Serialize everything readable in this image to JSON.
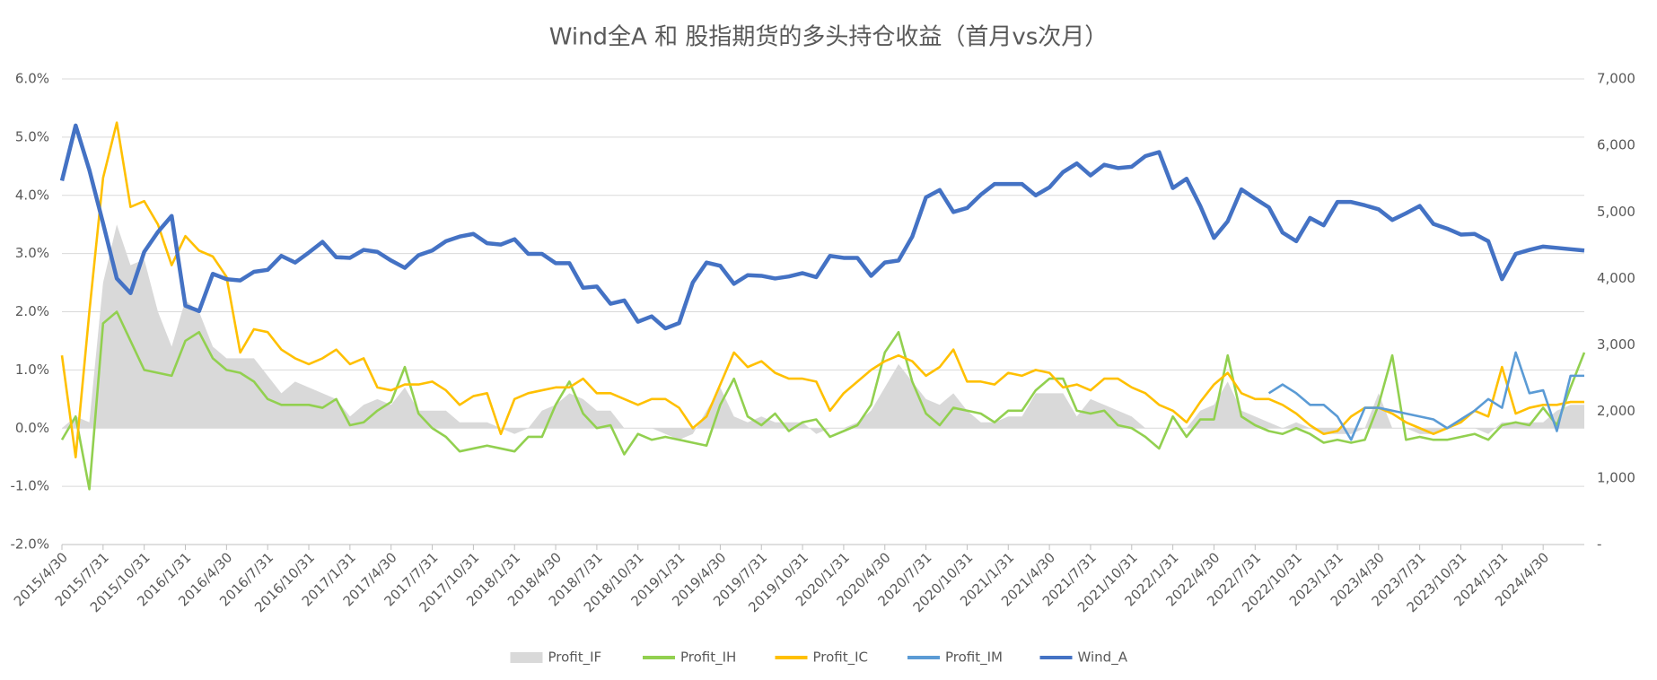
{
  "chart_data": {
    "type": "line",
    "title": "Wind全A 和 股指期货的多头持仓收益（首月vs次月）",
    "categories": [
      "2015/4/30",
      null,
      null,
      "2015/7/31",
      null,
      null,
      "2015/10/31",
      null,
      null,
      "2016/1/31",
      null,
      null,
      "2016/4/30",
      null,
      null,
      "2016/7/31",
      null,
      null,
      "2016/10/31",
      null,
      null,
      "2017/1/31",
      null,
      null,
      "2017/4/30",
      null,
      null,
      "2017/7/31",
      null,
      null,
      "2017/10/31",
      null,
      null,
      "2018/1/31",
      null,
      null,
      "2018/4/30",
      null,
      null,
      "2018/7/31",
      null,
      null,
      "2018/10/31",
      null,
      null,
      "2019/1/31",
      null,
      null,
      "2019/4/30",
      null,
      null,
      "2019/7/31",
      null,
      null,
      "2019/10/31",
      null,
      null,
      "2020/1/31",
      null,
      null,
      "2020/4/30",
      null,
      null,
      "2020/7/31",
      null,
      null,
      "2020/10/31",
      null,
      null,
      "2021/1/31",
      null,
      null,
      "2021/4/30",
      null,
      null,
      "2021/7/31",
      null,
      null,
      "2021/10/31",
      null,
      null,
      "2022/1/31",
      null,
      null,
      "2022/4/30",
      null,
      null,
      "2022/7/31",
      null,
      null,
      "2022/10/31",
      null,
      null,
      "2023/1/31",
      null,
      null,
      "2023/4/30",
      null,
      null,
      "2023/7/31",
      null,
      null,
      "2023/10/31",
      null,
      null,
      "2024/1/31",
      null,
      null,
      "2024/4/30",
      null,
      null,
      null
    ],
    "series": [
      {
        "name": "Profit_IF",
        "type": "area",
        "color": "#d9d9d9",
        "values": [
          0.0,
          0.2,
          0.1,
          2.5,
          3.5,
          2.8,
          2.9,
          2.0,
          1.4,
          2.2,
          2.0,
          1.4,
          1.2,
          1.2,
          1.2,
          0.9,
          0.6,
          0.8,
          0.7,
          0.6,
          0.5,
          0.2,
          0.4,
          0.5,
          0.4,
          0.7,
          0.3,
          0.3,
          0.3,
          0.1,
          0.1,
          0.1,
          0.0,
          -0.1,
          0.0,
          0.3,
          0.4,
          0.6,
          0.5,
          0.3,
          0.3,
          0.0,
          0.0,
          0.0,
          -0.1,
          -0.2,
          -0.1,
          0.3,
          0.7,
          0.2,
          0.1,
          0.2,
          0.1,
          0.1,
          0.1,
          -0.1,
          0.0,
          0.0,
          0.1,
          0.3,
          0.7,
          1.1,
          0.8,
          0.5,
          0.4,
          0.6,
          0.3,
          0.1,
          0.1,
          0.2,
          0.2,
          0.6,
          0.6,
          0.6,
          0.2,
          0.5,
          0.4,
          0.3,
          0.2,
          0.0,
          0.0,
          0.0,
          0.0,
          0.3,
          0.4,
          0.8,
          0.3,
          0.2,
          0.1,
          0.0,
          0.1,
          0.0,
          -0.1,
          -0.1,
          -0.1,
          0.0,
          0.6,
          0.0,
          0.0,
          -0.1,
          -0.1,
          0.0,
          0.0,
          0.0,
          -0.1,
          0.1,
          0.1,
          0.1,
          0.1,
          0.3,
          0.4,
          0.4
        ]
      },
      {
        "name": "Profit_IH",
        "color": "#92d050",
        "values": [
          -0.2,
          0.2,
          -1.05,
          1.8,
          2.0,
          1.5,
          1.0,
          0.95,
          0.9,
          1.5,
          1.65,
          1.2,
          1.0,
          0.95,
          0.8,
          0.5,
          0.4,
          0.4,
          0.4,
          0.35,
          0.5,
          0.05,
          0.1,
          0.3,
          0.45,
          1.05,
          0.25,
          0.0,
          -0.15,
          -0.4,
          -0.35,
          -0.3,
          -0.35,
          -0.4,
          -0.15,
          -0.15,
          0.4,
          0.8,
          0.25,
          0.0,
          0.05,
          -0.45,
          -0.1,
          -0.2,
          -0.15,
          -0.2,
          -0.25,
          -0.3,
          0.4,
          0.85,
          0.2,
          0.05,
          0.25,
          -0.05,
          0.1,
          0.15,
          -0.15,
          -0.05,
          0.05,
          0.4,
          1.3,
          1.65,
          0.8,
          0.25,
          0.05,
          0.35,
          0.3,
          0.25,
          0.1,
          0.3,
          0.3,
          0.65,
          0.85,
          0.85,
          0.3,
          0.25,
          0.3,
          0.05,
          0.0,
          -0.15,
          -0.35,
          0.2,
          -0.15,
          0.15,
          0.15,
          1.25,
          0.2,
          0.05,
          -0.05,
          -0.1,
          0.0,
          -0.1,
          -0.25,
          -0.2,
          -0.25,
          -0.2,
          0.4,
          1.25,
          -0.2,
          -0.15,
          -0.2,
          -0.2,
          -0.15,
          -0.1,
          -0.2,
          0.05,
          0.1,
          0.05,
          0.35,
          0.05,
          0.7,
          1.3
        ]
      },
      {
        "name": "Profit_IC",
        "color": "#ffc000",
        "values": [
          1.25,
          -0.5,
          2.0,
          4.3,
          5.25,
          3.8,
          3.9,
          3.5,
          2.8,
          3.3,
          3.05,
          2.95,
          2.6,
          1.3,
          1.7,
          1.65,
          1.35,
          1.2,
          1.1,
          1.2,
          1.35,
          1.1,
          1.2,
          0.7,
          0.65,
          0.75,
          0.75,
          0.8,
          0.65,
          0.4,
          0.55,
          0.6,
          -0.1,
          0.5,
          0.6,
          0.65,
          0.7,
          0.7,
          0.85,
          0.6,
          0.6,
          0.5,
          0.4,
          0.5,
          0.5,
          0.35,
          0.0,
          0.2,
          0.75,
          1.3,
          1.05,
          1.15,
          0.95,
          0.85,
          0.85,
          0.8,
          0.3,
          0.6,
          0.8,
          1.0,
          1.15,
          1.25,
          1.15,
          0.9,
          1.05,
          1.35,
          0.8,
          0.8,
          0.75,
          0.95,
          0.9,
          1.0,
          0.95,
          0.7,
          0.75,
          0.65,
          0.85,
          0.85,
          0.7,
          0.6,
          0.4,
          0.3,
          0.1,
          0.45,
          0.75,
          0.95,
          0.6,
          0.5,
          0.5,
          0.4,
          0.25,
          0.05,
          -0.1,
          -0.05,
          0.2,
          0.35,
          0.35,
          0.25,
          0.1,
          0.0,
          -0.1,
          0.0,
          0.1,
          0.3,
          0.2,
          1.05,
          0.25,
          0.35,
          0.4,
          0.4,
          0.45,
          0.45
        ]
      },
      {
        "name": "Profit_IM",
        "color": "#5b9bd5",
        "values": [
          null,
          null,
          null,
          null,
          null,
          null,
          null,
          null,
          null,
          null,
          null,
          null,
          null,
          null,
          null,
          null,
          null,
          null,
          null,
          null,
          null,
          null,
          null,
          null,
          null,
          null,
          null,
          null,
          null,
          null,
          null,
          null,
          null,
          null,
          null,
          null,
          null,
          null,
          null,
          null,
          null,
          null,
          null,
          null,
          null,
          null,
          null,
          null,
          null,
          null,
          null,
          null,
          null,
          null,
          null,
          null,
          null,
          null,
          null,
          null,
          null,
          null,
          null,
          null,
          null,
          null,
          null,
          null,
          null,
          null,
          null,
          null,
          null,
          null,
          null,
          null,
          null,
          null,
          null,
          null,
          null,
          null,
          null,
          null,
          null,
          null,
          null,
          null,
          0.6,
          0.75,
          0.6,
          0.4,
          0.4,
          0.2,
          -0.2,
          0.35,
          0.35,
          0.3,
          0.25,
          0.2,
          0.15,
          0.0,
          0.15,
          0.3,
          0.5,
          0.35,
          1.3,
          0.6,
          0.65,
          -0.05,
          0.9,
          0.9
        ]
      },
      {
        "name": "Wind_A",
        "color": "#4472c4",
        "axis": "y2",
        "values": [
          5470,
          6300,
          5630,
          4830,
          4000,
          3780,
          4400,
          4700,
          4940,
          3590,
          3510,
          4070,
          3990,
          3970,
          4100,
          4130,
          4340,
          4240,
          4390,
          4550,
          4320,
          4310,
          4430,
          4400,
          4270,
          4160,
          4350,
          4420,
          4560,
          4630,
          4670,
          4530,
          4510,
          4590,
          4370,
          4370,
          4230,
          4230,
          3860,
          3880,
          3620,
          3670,
          3350,
          3430,
          3250,
          3330,
          3940,
          4240,
          4190,
          3920,
          4050,
          4040,
          4000,
          4030,
          4080,
          4020,
          4340,
          4310,
          4310,
          4040,
          4240,
          4270,
          4630,
          5220,
          5330,
          5000,
          5060,
          5260,
          5420,
          5420,
          5420,
          5250,
          5370,
          5600,
          5730,
          5550,
          5710,
          5660,
          5680,
          5840,
          5900,
          5360,
          5500,
          5090,
          4610,
          4860,
          5340,
          5200,
          5070,
          4690,
          4560,
          4910,
          4800,
          5150,
          5150,
          5100,
          5040,
          4880,
          4980,
          5090,
          4820,
          4750,
          4660,
          4670,
          4560,
          3990,
          4370,
          4430,
          4480,
          4460,
          4440,
          4420
        ]
      }
    ],
    "ylim": [
      -2,
      6
    ],
    "yticks": [
      {
        "value": -2,
        "label": "-2.0%"
      },
      {
        "value": -1,
        "label": "-1.0%"
      },
      {
        "value": 0,
        "label": "0.0%"
      },
      {
        "value": 1,
        "label": "1.0%"
      },
      {
        "value": 2,
        "label": "2.0%"
      },
      {
        "value": 3,
        "label": "3.0%"
      },
      {
        "value": 4,
        "label": "4.0%"
      },
      {
        "value": 5,
        "label": "5.0%"
      },
      {
        "value": 6,
        "label": "6.0%"
      }
    ],
    "y2lim": [
      0,
      7000
    ],
    "y2ticks": [
      {
        "value": 0,
        "label": "-"
      },
      {
        "value": 1000,
        "label": "1,000"
      },
      {
        "value": 2000,
        "label": "2,000"
      },
      {
        "value": 3000,
        "label": "3,000"
      },
      {
        "value": 4000,
        "label": "4,000"
      },
      {
        "value": 5000,
        "label": "5,000"
      },
      {
        "value": 6000,
        "label": "6,000"
      },
      {
        "value": 7000,
        "label": "7,000"
      }
    ],
    "grid": true,
    "legend": "bottom"
  }
}
